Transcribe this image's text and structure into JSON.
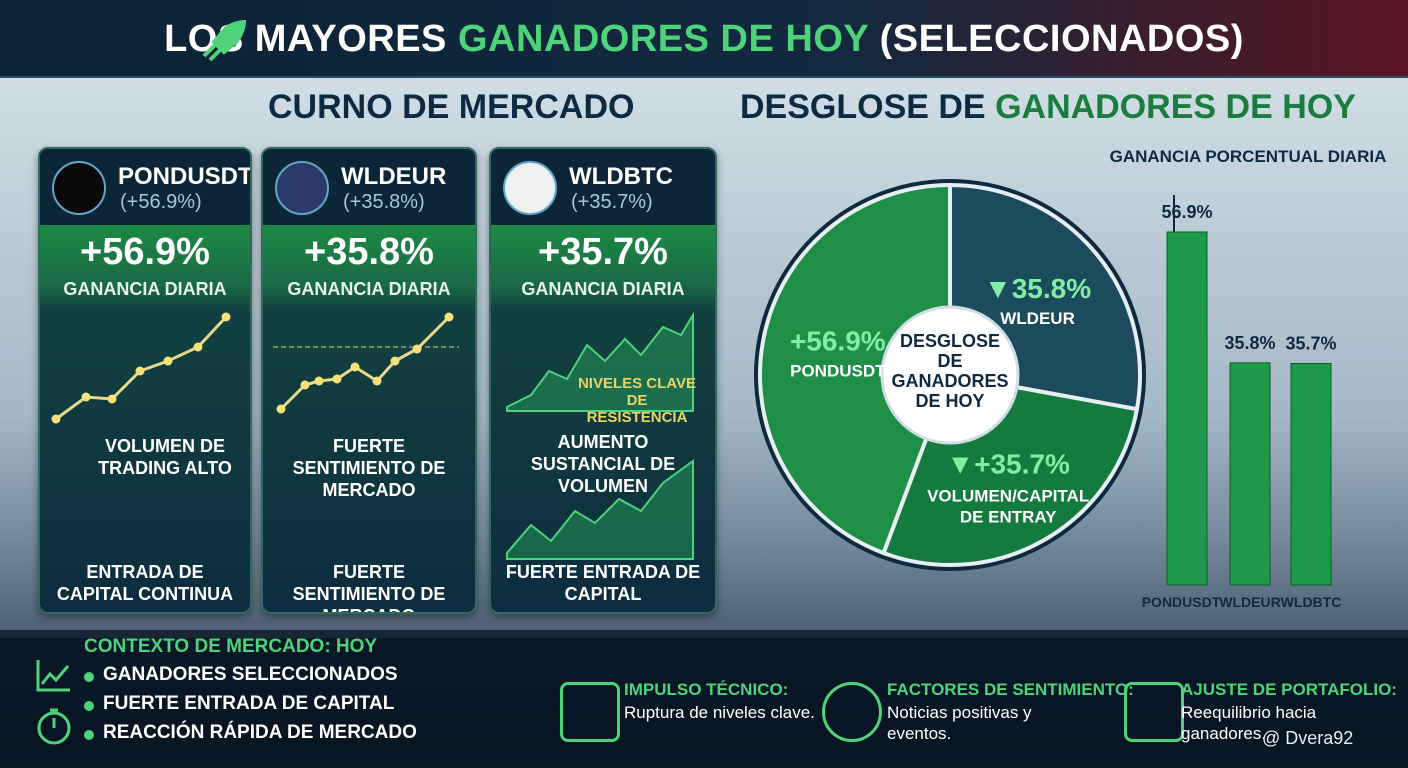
{
  "header": {
    "title": [
      "LOS MAYORES ",
      "GANADORES DE HOY",
      " (SELECCIONADOS)"
    ]
  },
  "left_heading": "CURNO DE MERCADO",
  "right_heading": [
    "DESGLOSE DE ",
    "GANADORES DE HOY"
  ],
  "cards": [
    {
      "symbol": "PONDUSDT",
      "change": "(+56.9%)",
      "gain": "+56.9%",
      "gain_label": "GANANCIA DIARIA",
      "note1": "VOLUMEN DE TRADING ALTO",
      "note2": "ENTRADA DE CAPITAL CONTINUA"
    },
    {
      "symbol": "WLDEUR",
      "change": "(+35.8%)",
      "gain": "+35.8%",
      "gain_label": "GANANCIA DIARIA",
      "note1": "FUERTE SENTIMIENTO DE MERCADO",
      "note2": "FUERTE SENTIMIENTO DE MERCADO"
    },
    {
      "symbol": "WLDBTC",
      "change": "(+35.7%)",
      "gain": "+35.7%",
      "gain_label": "GANANCIA DIARIA",
      "annotation": "NIVELES CLAVE DE RESISTENCIA",
      "note1": "AUMENTO SUSTANCIAL DE VOLUMEN",
      "note2": "FUERTE ENTRADA DE CAPITAL"
    }
  ],
  "context": {
    "title": "CONTEXTO DE MERCADO: HOY",
    "items": [
      "GANADORES SELECCIONADOS",
      "FUERTE ENTRADA DE CAPITAL",
      "REACCIÓN RÁPIDA DE MERCADO"
    ]
  },
  "footer": [
    {
      "title": "IMPULSO TÉCNICO:",
      "text": "Ruptura de niveles clave."
    },
    {
      "title": "FACTORES DE SENTIMIENTO:",
      "text": "Noticias positivas y eventos."
    },
    {
      "title": "AJUSTE DE PORTAFOLIO:",
      "text": "Reequilibrio hacia ganadores."
    }
  ],
  "watermark": "@ Dvera92",
  "chart_data": [
    {
      "type": "pie",
      "center_label": "DESGLOSE DE GANADORES DE HOY",
      "categories": [
        "PONDUSDT",
        "WLDEUR",
        "VOLUMEN/CAPITAL DE ENTRAY"
      ],
      "values": [
        56.9,
        35.8,
        35.7
      ],
      "value_labels": [
        "+56.9%",
        "▼35.8%",
        "▼+35.7%"
      ],
      "colors": [
        "#1f8f47",
        "#1c4b5e",
        "#157a3d"
      ]
    },
    {
      "type": "bar",
      "title": "GANANCIA PORCENTUAL DIARIA",
      "categories": [
        "PONDUSDT",
        "WLDEUR",
        "WLDBTC"
      ],
      "values": [
        56.9,
        35.8,
        35.7
      ],
      "value_labels": [
        "56.9%",
        "35.8%",
        "35.7%"
      ],
      "color": "#1c9a4a"
    }
  ]
}
